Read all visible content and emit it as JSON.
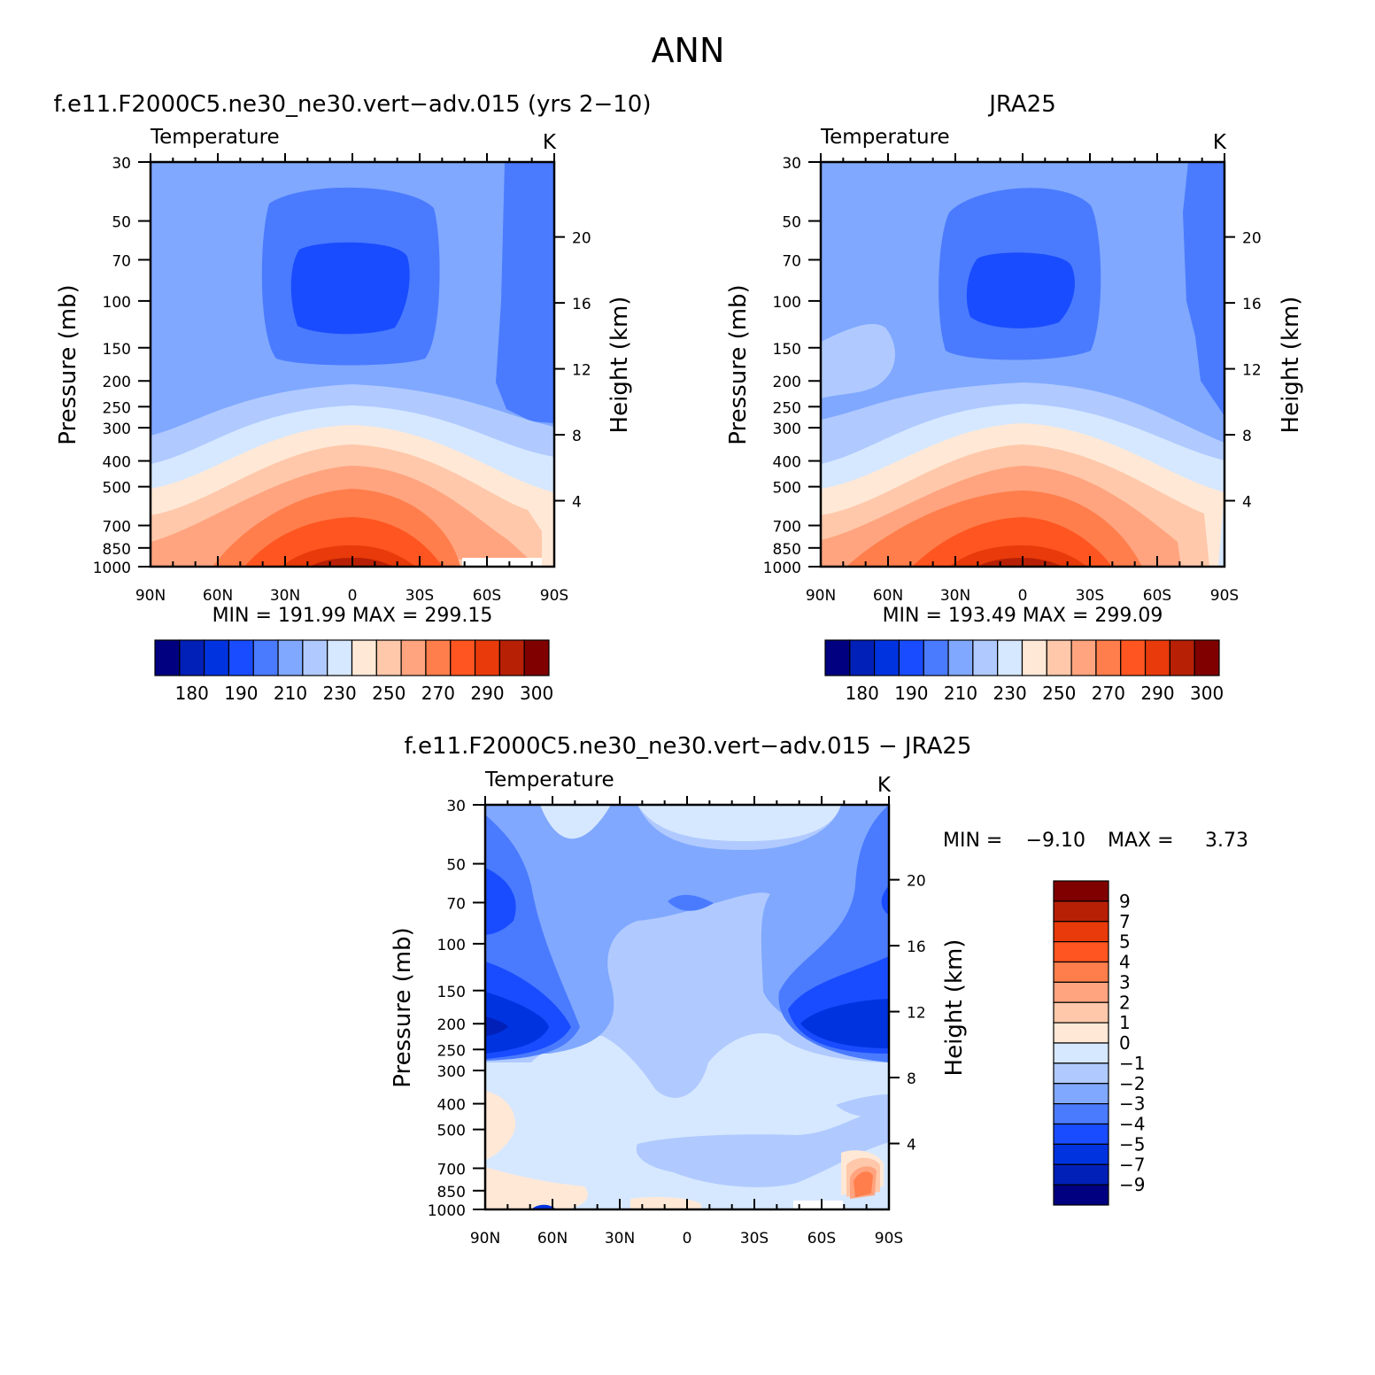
{
  "figure_title": "ANN",
  "colors": {
    "temp_levels": [
      "#000080",
      "#0020B8",
      "#0033E0",
      "#1A4CFF",
      "#4A7BFF",
      "#80A8FF",
      "#B0CAFF",
      "#D6E8FF",
      "#FFE8D6",
      "#FFC8AA",
      "#FFA47F",
      "#FF7E4C",
      "#FF5520",
      "#E83A0A",
      "#B82005",
      "#800000"
    ],
    "diff_levels": [
      "#000080",
      "#0020B8",
      "#0033E0",
      "#1A4CFF",
      "#4A7BFF",
      "#80A8FF",
      "#B0CAFF",
      "#D6E8FF",
      "#FFE8D6",
      "#FFC8AA",
      "#FFA47F",
      "#FF7E4C",
      "#FF5520",
      "#E83A0A",
      "#B82005",
      "#800000"
    ]
  },
  "chart_data": [
    {
      "type": "heatmap",
      "title": "f.e11.F2000C5.ne30_ne30.vert−adv.015 (yrs 2−10)",
      "subtitle": "Temperature",
      "units": "K",
      "ylabel": "Pressure (mb)",
      "ylabel_right": "Height (km)",
      "x_ticks": [
        "90N",
        "60N",
        "30N",
        "0",
        "30S",
        "60S",
        "90S"
      ],
      "y_ticks": [
        "30",
        "50",
        "70",
        "100",
        "150",
        "200",
        "250",
        "300",
        "400",
        "500",
        "700",
        "850",
        "1000"
      ],
      "y_ticks_right": [
        "20",
        "16",
        "12",
        "8",
        "4"
      ],
      "ylim": [
        1000,
        30
      ],
      "y_scale": "log",
      "xlim": [
        90,
        -90
      ],
      "stats": "MIN = 191.99 MAX = 299.15",
      "min": 191.99,
      "max": 299.15,
      "colorbar_labels": [
        "180",
        "190",
        "210",
        "230",
        "250",
        "270",
        "290",
        "300"
      ]
    },
    {
      "type": "heatmap",
      "title": "JRA25",
      "subtitle": "Temperature",
      "units": "K",
      "ylabel": "Pressure (mb)",
      "ylabel_right": "Height (km)",
      "x_ticks": [
        "90N",
        "60N",
        "30N",
        "0",
        "30S",
        "60S",
        "90S"
      ],
      "y_ticks": [
        "30",
        "50",
        "70",
        "100",
        "150",
        "200",
        "250",
        "300",
        "400",
        "500",
        "700",
        "850",
        "1000"
      ],
      "y_ticks_right": [
        "20",
        "16",
        "12",
        "8",
        "4"
      ],
      "ylim": [
        1000,
        30
      ],
      "y_scale": "log",
      "xlim": [
        90,
        -90
      ],
      "stats": "MIN = 193.49 MAX = 299.09",
      "min": 193.49,
      "max": 299.09,
      "colorbar_labels": [
        "180",
        "190",
        "210",
        "230",
        "250",
        "270",
        "290",
        "300"
      ]
    },
    {
      "type": "heatmap",
      "title": "f.e11.F2000C5.ne30_ne30.vert−adv.015 − JRA25",
      "subtitle": "Temperature",
      "units": "K",
      "ylabel": "Pressure (mb)",
      "ylabel_right": "Height (km)",
      "x_ticks": [
        "90N",
        "60N",
        "30N",
        "0",
        "30S",
        "60S",
        "90S"
      ],
      "y_ticks": [
        "30",
        "50",
        "70",
        "100",
        "150",
        "200",
        "250",
        "300",
        "400",
        "500",
        "700",
        "850",
        "1000"
      ],
      "y_ticks_right": [
        "20",
        "16",
        "12",
        "8",
        "4"
      ],
      "ylim": [
        1000,
        30
      ],
      "y_scale": "log",
      "xlim": [
        90,
        -90
      ],
      "stats_min_label": "MIN =",
      "stats_min_value": "−9.10",
      "stats_max_label": "MAX =",
      "stats_max_value": "3.73",
      "min": -9.1,
      "max": 3.73,
      "colorbar_labels": [
        "9",
        "7",
        "5",
        "4",
        "3",
        "2",
        "1",
        "0",
        "−1",
        "−2",
        "−3",
        "−4",
        "−5",
        "−7",
        "−9"
      ]
    }
  ]
}
